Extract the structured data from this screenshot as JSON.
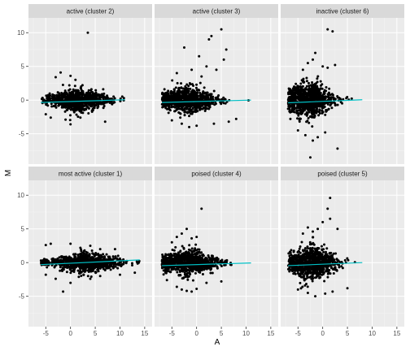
{
  "chart_data": {
    "type": "scatter",
    "facet_layout": "2 rows x 3 columns, shared axes",
    "xlabel": "A",
    "ylabel": "M",
    "xlim": [
      -8.5,
      16.5
    ],
    "ylim": [
      -9.5,
      12.2
    ],
    "xticks": [
      -5,
      0,
      5,
      10,
      15
    ],
    "yticks": [
      -5,
      0,
      5,
      10
    ],
    "xtick_labels": [
      "-5",
      "0",
      "5",
      "10",
      "15"
    ],
    "ytick_labels": [
      "-5",
      "0",
      "5",
      "10"
    ],
    "grid": true,
    "theme": "grey panel background with white gridlines",
    "colors": {
      "panel_bg": "#ebebeb",
      "strip_bg": "#d9d9d9",
      "grid_major": "#ffffff",
      "grid_minor": "#f5f5f5",
      "points": "#000000",
      "trend_line": "#00bfc4",
      "tick": "#333333"
    },
    "facets": [
      {
        "title": "active (cluster 2)",
        "trend": {
          "x": [
            -6,
            11
          ],
          "y": [
            -0.35,
            0.05
          ]
        },
        "core": {
          "x_range": [
            -6,
            11
          ],
          "x_peak": 1.5,
          "y_spread": 1.2
        },
        "points": [
          [
            3.5,
            10.0
          ],
          [
            -3,
            3.4
          ],
          [
            -2,
            4.1
          ],
          [
            0,
            3.6
          ],
          [
            1,
            3.0
          ],
          [
            -4,
            -2.6
          ],
          [
            0,
            -3.6
          ],
          [
            -1,
            -2.9
          ],
          [
            2,
            -2.6
          ],
          [
            7,
            -3.2
          ],
          [
            -5,
            -2.1
          ]
        ]
      },
      {
        "title": "active (cluster 3)",
        "trend": {
          "x": [
            -7,
            11
          ],
          "y": [
            -0.35,
            0.0
          ]
        },
        "core": {
          "x_range": [
            -7,
            11
          ],
          "x_peak": -2.0,
          "y_spread": 1.4
        },
        "points": [
          [
            -2.5,
            7.8
          ],
          [
            0.5,
            6.5
          ],
          [
            2.5,
            9.0
          ],
          [
            3,
            9.5
          ],
          [
            5,
            10.5
          ],
          [
            6,
            7.5
          ],
          [
            5.5,
            6.0
          ],
          [
            -1,
            4.5
          ],
          [
            2,
            5.0
          ],
          [
            4,
            4.5
          ],
          [
            1,
            3.5
          ],
          [
            -4,
            4.0
          ],
          [
            0,
            -3.8
          ],
          [
            -1.5,
            -4.0
          ],
          [
            3.5,
            -3.5
          ],
          [
            6.5,
            -3.2
          ],
          [
            8,
            -2.8
          ],
          [
            -5,
            -3.0
          ],
          [
            -3,
            -3.5
          ]
        ]
      },
      {
        "title": "inactive (cluster 6)",
        "trend": {
          "x": [
            -7,
            8
          ],
          "y": [
            -0.4,
            0.05
          ]
        },
        "core": {
          "x_range": [
            -7,
            8
          ],
          "x_peak": -3.0,
          "y_spread": 1.9
        },
        "points": [
          [
            1,
            10.5
          ],
          [
            2,
            10.2
          ],
          [
            -2,
            6.0
          ],
          [
            -1.5,
            7.0
          ],
          [
            0,
            5.0
          ],
          [
            -3,
            5.5
          ],
          [
            1,
            4.8
          ],
          [
            2.5,
            5.2
          ],
          [
            -4,
            4.5
          ],
          [
            -2.5,
            -8.5
          ],
          [
            3,
            -7.2
          ],
          [
            -2,
            -6.0
          ],
          [
            -1,
            -5.5
          ],
          [
            -3.5,
            -5.2
          ],
          [
            0.5,
            -4.8
          ],
          [
            -5,
            -4.5
          ]
        ]
      },
      {
        "title": "most active (cluster 1)",
        "trend": {
          "x": [
            -6,
            14
          ],
          "y": [
            -0.3,
            0.4
          ]
        },
        "core": {
          "x_range": [
            -6,
            14
          ],
          "x_peak": 3.0,
          "y_spread": 1.0
        },
        "points": [
          [
            -1.5,
            -4.3
          ],
          [
            -5,
            2.6
          ],
          [
            -4,
            2.8
          ],
          [
            0,
            2.8
          ],
          [
            2,
            2.2
          ],
          [
            4,
            2.5
          ],
          [
            6,
            2.0
          ],
          [
            9,
            2.0
          ],
          [
            -3,
            -2.4
          ],
          [
            0,
            -3.0
          ],
          [
            4,
            -2.4
          ],
          [
            10,
            -1.8
          ],
          [
            -5,
            -1.8
          ],
          [
            6,
            -2.0
          ],
          [
            13,
            -1.5
          ]
        ]
      },
      {
        "title": "poised (cluster 4)",
        "trend": {
          "x": [
            -7,
            11
          ],
          "y": [
            -0.45,
            -0.05
          ]
        },
        "core": {
          "x_range": [
            -7,
            11
          ],
          "x_peak": -2.0,
          "y_spread": 1.3
        },
        "points": [
          [
            1,
            8.0
          ],
          [
            -2,
            5.0
          ],
          [
            -3,
            4.3
          ],
          [
            -4,
            3.8
          ],
          [
            -1,
            3.6
          ],
          [
            0,
            3.8
          ],
          [
            -5,
            3.0
          ],
          [
            -2,
            -4.2
          ],
          [
            -3,
            -4.0
          ],
          [
            -4,
            -3.6
          ],
          [
            0,
            -3.9
          ],
          [
            -1,
            -4.3
          ],
          [
            2,
            -3.0
          ],
          [
            5,
            -2.8
          ],
          [
            -6,
            -2.6
          ]
        ]
      },
      {
        "title": "poised (cluster 5)",
        "trend": {
          "x": [
            -7,
            8
          ],
          "y": [
            -0.45,
            0.0
          ]
        },
        "core": {
          "x_range": [
            -7,
            8
          ],
          "x_peak": -2.5,
          "y_spread": 1.8
        },
        "points": [
          [
            1.5,
            9.6
          ],
          [
            1,
            8.0
          ],
          [
            1.5,
            6.5
          ],
          [
            0,
            6.0
          ],
          [
            -1,
            5.0
          ],
          [
            -3,
            5.2
          ],
          [
            -2,
            4.6
          ],
          [
            3,
            5.0
          ],
          [
            -4,
            4.3
          ],
          [
            -1.5,
            -5.0
          ],
          [
            -3,
            -4.5
          ],
          [
            0.5,
            -4.6
          ],
          [
            5,
            -3.8
          ],
          [
            -5,
            -4.0
          ],
          [
            2,
            -4.3
          ]
        ]
      }
    ]
  }
}
